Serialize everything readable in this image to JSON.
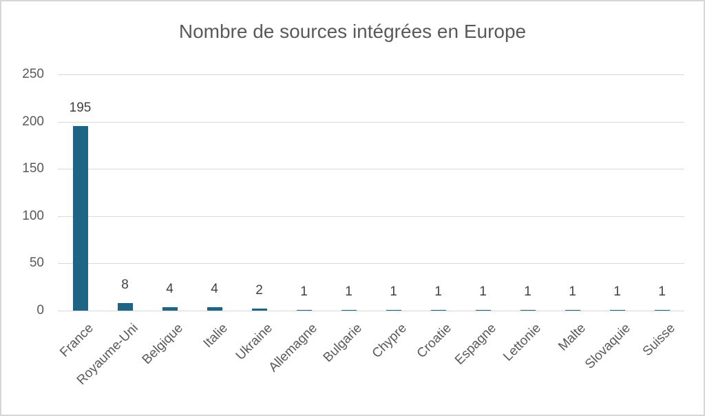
{
  "title": "Nombre de sources intégrées en Europe",
  "chart_data": {
    "type": "bar",
    "title": "Nombre de sources intégrées en Europe",
    "categories": [
      "France",
      "Royaume-Uni",
      "Belgique",
      "Italie",
      "Ukraine",
      "Allemagne",
      "Bulgarie",
      "Chypre",
      "Croatie",
      "Espagne",
      "Lettonie",
      "Malte",
      "Slovaquie",
      "Suisse"
    ],
    "values": [
      195,
      8,
      4,
      4,
      2,
      1,
      1,
      1,
      1,
      1,
      1,
      1,
      1,
      1
    ],
    "data_labels": [
      "195",
      "8",
      "4",
      "4",
      "2",
      "1",
      "1",
      "1",
      "1",
      "1",
      "1",
      "1",
      "1",
      "1"
    ],
    "xlabel": "",
    "ylabel": "",
    "ylim": [
      0,
      250
    ],
    "yticks": [
      0,
      50,
      100,
      150,
      200,
      250
    ],
    "grid": "horizontal",
    "legend_position": "none",
    "colors": {
      "bar": "#1E6484",
      "gridline": "#D9D9D9",
      "tick_label": "#595959",
      "data_label": "#404040",
      "title": "#595959",
      "background": "#FFFFFF",
      "frame_border": "#D6D6D6"
    }
  }
}
